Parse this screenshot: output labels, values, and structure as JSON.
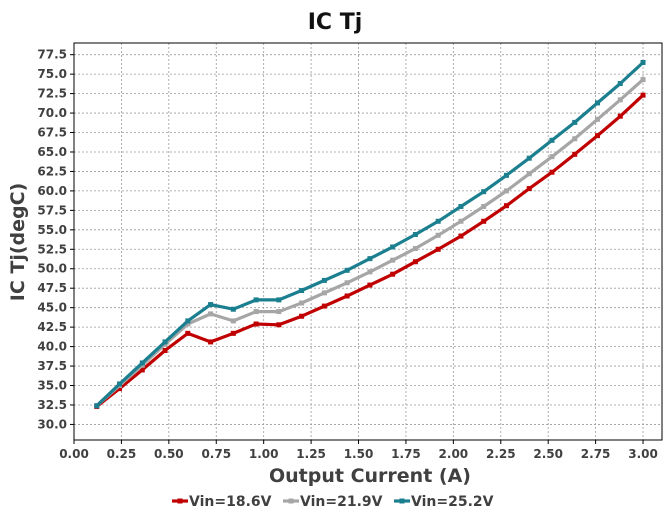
{
  "chart_data": {
    "type": "line",
    "title": "IC Tj",
    "xlabel": "Output Current (A)",
    "ylabel": "IC Tj(degC)",
    "xlim": [
      0.0,
      3.1
    ],
    "ylim": [
      28.0,
      79.0
    ],
    "x_ticks": [
      "0.00",
      "0.25",
      "0.50",
      "0.75",
      "1.00",
      "1.25",
      "1.50",
      "1.75",
      "2.00",
      "2.25",
      "2.50",
      "2.75",
      "3.00"
    ],
    "y_ticks": [
      "30.0",
      "32.5",
      "35.0",
      "37.5",
      "40.0",
      "42.5",
      "45.0",
      "47.5",
      "50.0",
      "52.5",
      "55.0",
      "57.5",
      "60.0",
      "62.5",
      "65.0",
      "67.5",
      "70.0",
      "72.5",
      "75.0",
      "77.5"
    ],
    "grid": true,
    "legend_position": "bottom",
    "x": [
      0.12,
      0.24,
      0.36,
      0.48,
      0.6,
      0.72,
      0.84,
      0.96,
      1.08,
      1.2,
      1.32,
      1.44,
      1.56,
      1.68,
      1.8,
      1.92,
      2.04,
      2.16,
      2.28,
      2.4,
      2.52,
      2.64,
      2.76,
      2.88,
      3.0
    ],
    "series": [
      {
        "name": "Vin=18.6V",
        "color": "#c00000",
        "values": [
          32.3,
          34.6,
          37.0,
          39.5,
          41.7,
          40.6,
          41.7,
          42.9,
          42.8,
          43.9,
          45.2,
          46.5,
          47.9,
          49.3,
          50.9,
          52.5,
          54.2,
          56.1,
          58.1,
          60.3,
          62.4,
          64.7,
          67.1,
          69.6,
          72.3
        ]
      },
      {
        "name": "Vin=21.9V",
        "color": "#a6a6a6",
        "values": [
          32.4,
          35.0,
          37.6,
          40.3,
          42.9,
          44.2,
          43.3,
          44.5,
          44.5,
          45.6,
          46.9,
          48.2,
          49.6,
          51.1,
          52.6,
          54.3,
          56.1,
          58.0,
          60.0,
          62.2,
          64.4,
          66.7,
          69.2,
          71.7,
          74.3
        ]
      },
      {
        "name": "Vin=25.2V",
        "color": "#1b7f8f",
        "values": [
          32.4,
          35.2,
          37.9,
          40.6,
          43.3,
          45.4,
          44.8,
          46.0,
          46.0,
          47.2,
          48.5,
          49.8,
          51.3,
          52.8,
          54.4,
          56.1,
          58.0,
          59.9,
          62.0,
          64.2,
          66.5,
          68.8,
          71.3,
          73.8,
          76.5
        ]
      }
    ]
  }
}
